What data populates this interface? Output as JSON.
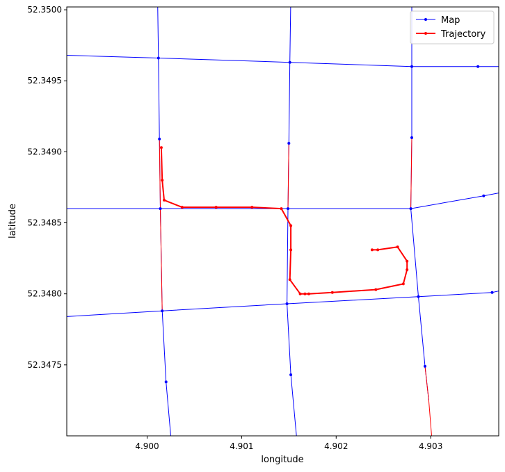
{
  "chart_data": {
    "type": "line",
    "title": "",
    "xlabel": "longitude",
    "ylabel": "latitude",
    "xlim": [
      4.89915,
      4.90372
    ],
    "ylim": [
      52.347,
      52.35002
    ],
    "xticks": [
      4.9,
      4.901,
      4.902,
      4.903
    ],
    "xtick_labels": [
      "4.900",
      "4.901",
      "4.902",
      "4.903"
    ],
    "yticks": [
      52.3475,
      52.348,
      52.3485,
      52.349,
      52.3495,
      52.35
    ],
    "ytick_labels": [
      "52.3475",
      "52.3480",
      "52.3485",
      "52.3490",
      "52.3495",
      "52.3500"
    ],
    "grid": false,
    "legend": {
      "position": "top-right",
      "entries": [
        "Map",
        "Trajectory"
      ]
    },
    "colors": {
      "map": "#0000ff",
      "trajectory": "#ff0000"
    },
    "map_roads": [
      [
        [
          4.89915,
          52.34968
        ],
        [
          4.90012,
          52.34966
        ],
        [
          4.90151,
          52.34963
        ],
        [
          4.9028,
          52.3496
        ],
        [
          4.9035,
          52.3496
        ],
        [
          4.90372,
          52.3496
        ]
      ],
      [
        [
          4.89915,
          52.3486
        ],
        [
          4.90014,
          52.3486
        ],
        [
          4.90149,
          52.3486
        ],
        [
          4.90279,
          52.3486
        ],
        [
          4.90356,
          52.34869
        ],
        [
          4.90372,
          52.34871
        ]
      ],
      [
        [
          4.89915,
          52.34784
        ],
        [
          4.90016,
          52.34788
        ],
        [
          4.90148,
          52.34793
        ],
        [
          4.90287,
          52.34798
        ],
        [
          4.90365,
          52.34801
        ],
        [
          4.90372,
          52.34802
        ]
      ],
      [
        [
          4.90011,
          52.3501
        ],
        [
          4.90012,
          52.34966
        ],
        [
          4.90013,
          52.34909
        ],
        [
          4.90014,
          52.3486
        ],
        [
          4.90016,
          52.34788
        ],
        [
          4.9002,
          52.34738
        ],
        [
          4.90025,
          52.347
        ]
      ],
      [
        [
          4.90152,
          52.3501
        ],
        [
          4.90151,
          52.34963
        ],
        [
          4.9015,
          52.34906
        ],
        [
          4.90149,
          52.3486
        ],
        [
          4.90148,
          52.34793
        ],
        [
          4.90152,
          52.34743
        ],
        [
          4.90158,
          52.347
        ]
      ],
      [
        [
          4.9028,
          52.3501
        ],
        [
          4.9028,
          52.3496
        ],
        [
          4.9028,
          52.3491
        ],
        [
          4.90279,
          52.3486
        ],
        [
          4.90287,
          52.34798
        ],
        [
          4.90294,
          52.34749
        ],
        [
          4.90298,
          52.34725
        ]
      ]
    ],
    "map_nodes": [
      [
        4.90012,
        52.34966
      ],
      [
        4.90151,
        52.34963
      ],
      [
        4.9028,
        52.3496
      ],
      [
        4.9035,
        52.3496
      ],
      [
        4.90014,
        52.3486
      ],
      [
        4.90149,
        52.3486
      ],
      [
        4.90279,
        52.3486
      ],
      [
        4.90356,
        52.34869
      ],
      [
        4.90016,
        52.34788
      ],
      [
        4.90148,
        52.34793
      ],
      [
        4.90287,
        52.34798
      ],
      [
        4.90365,
        52.34801
      ],
      [
        4.90013,
        52.34909
      ],
      [
        4.9015,
        52.34906
      ],
      [
        4.9028,
        52.3491
      ],
      [
        4.9002,
        52.34738
      ],
      [
        4.90152,
        52.34743
      ],
      [
        4.90294,
        52.34749
      ]
    ],
    "matched_segments": [
      [
        [
          4.90013,
          52.34909
        ],
        [
          4.90014,
          52.3486
        ]
      ],
      [
        [
          4.90014,
          52.3486
        ],
        [
          4.90016,
          52.34788
        ]
      ],
      [
        [
          4.9015,
          52.34906
        ],
        [
          4.90149,
          52.3486
        ]
      ],
      [
        [
          4.9028,
          52.3491
        ],
        [
          4.90279,
          52.3486
        ]
      ],
      [
        [
          4.90294,
          52.34749
        ],
        [
          4.90298,
          52.34725
        ],
        [
          4.90301,
          52.347
        ]
      ]
    ],
    "trajectory": [
      [
        4.90015,
        52.34903
      ],
      [
        4.90016,
        52.3488
      ],
      [
        4.90018,
        52.34866
      ],
      [
        4.90037,
        52.34861
      ],
      [
        4.90073,
        52.34861
      ],
      [
        4.90111,
        52.34861
      ],
      [
        4.90142,
        52.3486
      ],
      [
        4.90152,
        52.34848
      ],
      [
        4.90152,
        52.34831
      ],
      [
        4.90151,
        52.3481
      ],
      [
        4.90162,
        52.348
      ],
      [
        4.90167,
        52.348
      ],
      [
        4.90171,
        52.348
      ],
      [
        4.90196,
        52.34801
      ],
      [
        4.90242,
        52.34803
      ],
      [
        4.90271,
        52.34807
      ],
      [
        4.90275,
        52.34817
      ],
      [
        4.90275,
        52.34823
      ],
      [
        4.90265,
        52.34833
      ],
      [
        4.90244,
        52.34831
      ],
      [
        4.90238,
        52.34831
      ]
    ]
  }
}
